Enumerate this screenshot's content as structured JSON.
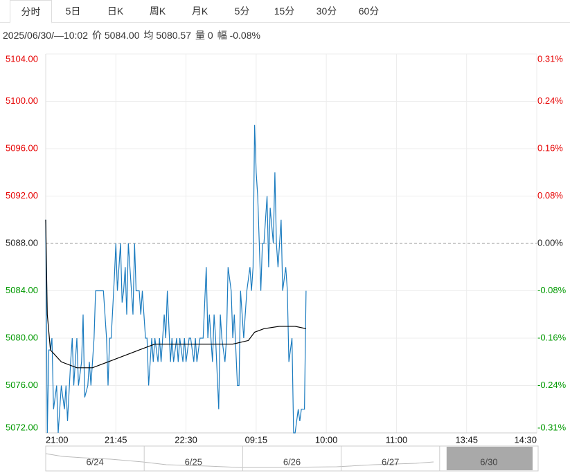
{
  "tabs": [
    "分时",
    "5日",
    "日K",
    "周K",
    "月K",
    "5分",
    "15分",
    "30分",
    "60分"
  ],
  "info": [
    "2025/06/30/—10:02",
    "价 5084.00",
    "均 5080.57",
    "量 0",
    "幅 -0.08%"
  ],
  "chart_data": {
    "type": "line",
    "xlim": [
      0,
      315
    ],
    "xticks": [
      {
        "value": 0,
        "label": "21:00"
      },
      {
        "value": 45,
        "label": "21:45"
      },
      {
        "value": 90,
        "label": "22:30"
      },
      {
        "value": 135,
        "label": "09:15"
      },
      {
        "value": 180,
        "label": "10:00"
      },
      {
        "value": 225,
        "label": "11:00"
      },
      {
        "value": 270,
        "label": "13:45"
      },
      {
        "value": 315,
        "label": "14:30"
      }
    ],
    "ylim": [
      5072,
      5104
    ],
    "yticks": [
      {
        "value": 5104,
        "label": "5104.00"
      },
      {
        "value": 5100,
        "label": "5100.00"
      },
      {
        "value": 5096,
        "label": "5096.00"
      },
      {
        "value": 5092,
        "label": "5092.00"
      },
      {
        "value": 5088,
        "label": "5088.00"
      },
      {
        "value": 5084,
        "label": "5084.00"
      },
      {
        "value": 5080,
        "label": "5080.00"
      },
      {
        "value": 5076,
        "label": "5076.00"
      },
      {
        "value": 5072,
        "label": "5072.00"
      }
    ],
    "y2lim": [
      -0.3145,
      0.3145
    ],
    "y2ticks": [
      {
        "value": 0.3145,
        "label": "0.31%"
      },
      {
        "value": 0.2358,
        "label": "0.24%"
      },
      {
        "value": 0.1572,
        "label": "0.16%"
      },
      {
        "value": 0.0786,
        "label": "0.08%"
      },
      {
        "value": 0,
        "label": "0.00%"
      },
      {
        "value": -0.0786,
        "label": "-0.08%"
      },
      {
        "value": -0.1572,
        "label": "-0.16%"
      },
      {
        "value": -0.2358,
        "label": "-0.24%"
      },
      {
        "value": -0.3145,
        "label": "-0.31%"
      }
    ],
    "reference_line": 5088,
    "up_color": "#e60000",
    "down_color": "#009900",
    "grid": true,
    "series": [
      {
        "color": "#1a7bbf",
        "x": [
          0,
          1,
          2,
          3,
          4,
          5,
          7,
          8,
          10,
          12,
          13,
          14,
          16,
          17,
          18,
          20,
          21,
          23,
          24,
          25,
          27,
          28,
          29,
          31,
          32,
          35,
          37,
          39,
          40,
          41,
          42,
          44,
          45,
          46,
          48,
          49,
          50,
          51,
          52,
          53,
          55,
          56,
          57,
          58,
          60,
          61,
          62,
          64,
          65,
          66,
          68,
          69,
          70,
          72,
          73,
          74,
          76,
          77,
          78,
          80,
          81,
          82,
          84,
          85,
          86,
          88,
          89,
          90,
          92,
          93,
          95,
          96,
          97,
          99,
          100,
          101,
          103,
          104,
          105,
          107,
          108,
          109,
          111,
          112,
          113,
          115,
          116,
          117,
          119,
          120,
          121,
          123,
          124,
          125,
          127,
          128,
          129,
          131,
          132,
          133,
          134,
          135,
          136,
          138,
          139,
          140,
          142,
          143,
          144,
          146,
          147,
          148,
          149,
          151,
          152,
          154,
          155,
          156,
          158,
          159,
          160,
          162,
          163,
          164,
          166,
          167
        ],
        "values": [
          5090,
          5072,
          5079,
          5079,
          5080,
          5074,
          5076,
          5072,
          5076,
          5074,
          5076,
          5073,
          5078,
          5080,
          5076,
          5080,
          5076,
          5078,
          5082,
          5075,
          5076,
          5078,
          5076,
          5080,
          5084,
          5084,
          5084,
          5080,
          5076,
          5080,
          5080,
          5085,
          5088,
          5084,
          5088,
          5083,
          5084,
          5086,
          5082,
          5088,
          5084,
          5082,
          5088,
          5084,
          5084,
          5082,
          5084,
          5080,
          5080,
          5076,
          5080,
          5078,
          5080,
          5078,
          5080,
          5078,
          5082,
          5080,
          5084,
          5078,
          5080,
          5078,
          5080,
          5078,
          5080,
          5078,
          5080,
          5078,
          5080,
          5080,
          5078,
          5080,
          5078,
          5080,
          5080,
          5080,
          5086,
          5080,
          5082,
          5078,
          5082,
          5080,
          5074,
          5082,
          5080,
          5078,
          5080,
          5086,
          5084,
          5080,
          5082,
          5076,
          5076,
          5084,
          5080,
          5082,
          5084,
          5086,
          5084,
          5086,
          5098,
          5094,
          5092,
          5084,
          5088,
          5088,
          5092,
          5086,
          5091,
          5088,
          5094,
          5088,
          5086,
          5090,
          5084,
          5086,
          5084,
          5078,
          5080,
          5072,
          5072,
          5074,
          5073,
          5074,
          5074,
          5084
        ]
      },
      {
        "color": "#000000",
        "x": [
          0,
          1,
          3,
          10,
          20,
          30,
          40,
          50,
          60,
          70,
          80,
          90,
          100,
          110,
          120,
          130,
          134,
          140,
          150,
          160,
          167
        ],
        "values": [
          5090,
          5082,
          5079,
          5078,
          5077.5,
          5077.5,
          5078,
          5078.5,
          5079,
          5079.5,
          5079.5,
          5079.5,
          5079.5,
          5079.5,
          5079.5,
          5079.8,
          5080.5,
          5080.8,
          5081,
          5081,
          5080.8
        ]
      }
    ]
  },
  "navigator": {
    "labels": [
      "6/24",
      "6/25",
      "6/26",
      "6/27",
      "6/30"
    ]
  }
}
